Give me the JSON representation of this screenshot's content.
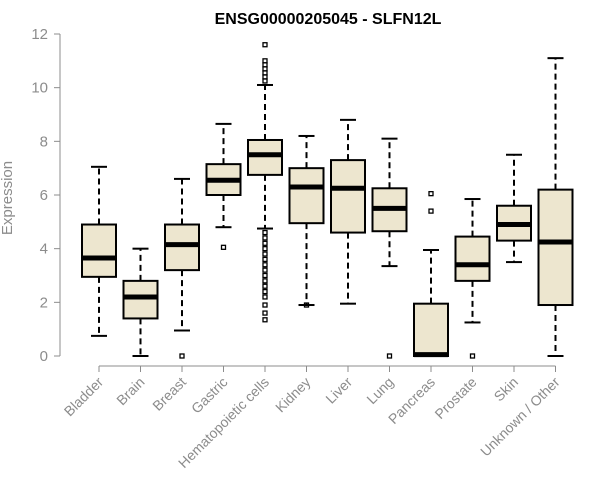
{
  "chart_data": {
    "type": "boxplot",
    "title": "ENSG00000205045 - SLFN12L",
    "xlabel": "",
    "ylabel": "Expression",
    "ylim": [
      0,
      12
    ],
    "yticks": [
      0,
      2,
      4,
      6,
      8,
      10,
      12
    ],
    "colors": {
      "box_fill": "#ede6cf",
      "stroke": "#000000",
      "axis": "#8c8c8c"
    },
    "categories": [
      "Bladder",
      "Brain",
      "Breast",
      "Gastric",
      "Hematopoietic cells",
      "Kidney",
      "Liver",
      "Lung",
      "Pancreas",
      "Prostate",
      "Skin",
      "Unknown / Other"
    ],
    "boxes": [
      {
        "name": "Bladder",
        "min": 0.75,
        "q1": 2.95,
        "median": 3.65,
        "q3": 4.9,
        "max": 7.05,
        "outliers": []
      },
      {
        "name": "Brain",
        "min": 0.0,
        "q1": 1.4,
        "median": 2.2,
        "q3": 2.8,
        "max": 4.0,
        "outliers": []
      },
      {
        "name": "Breast",
        "min": 0.95,
        "q1": 3.2,
        "median": 4.15,
        "q3": 4.9,
        "max": 6.6,
        "outliers": [
          0.0
        ]
      },
      {
        "name": "Gastric",
        "min": 4.8,
        "q1": 6.0,
        "median": 6.55,
        "q3": 7.15,
        "max": 8.65,
        "outliers": [
          4.05
        ]
      },
      {
        "name": "Hematopoietic cells",
        "min": 4.75,
        "q1": 6.75,
        "median": 7.5,
        "q3": 8.05,
        "max": 10.1,
        "outliers": [
          11.6,
          11.0,
          10.85,
          10.7,
          10.55,
          10.4,
          10.25,
          4.6,
          4.4,
          4.2,
          4.0,
          3.8,
          3.6,
          3.4,
          3.2,
          3.0,
          2.8,
          2.6,
          2.4,
          2.2,
          1.9,
          1.6,
          1.35
        ]
      },
      {
        "name": "Kidney",
        "min": 1.9,
        "q1": 4.95,
        "median": 6.3,
        "q3": 7.0,
        "max": 8.2,
        "outliers": [
          1.9
        ]
      },
      {
        "name": "Liver",
        "min": 1.95,
        "q1": 4.6,
        "median": 6.25,
        "q3": 7.3,
        "max": 8.8,
        "outliers": []
      },
      {
        "name": "Lung",
        "min": 3.35,
        "q1": 4.65,
        "median": 5.5,
        "q3": 6.25,
        "max": 8.1,
        "outliers": [
          0.0
        ]
      },
      {
        "name": "Pancreas",
        "min": 0.0,
        "q1": 0.0,
        "median": 0.05,
        "q3": 1.95,
        "max": 3.95,
        "outliers": [
          6.05,
          5.4
        ]
      },
      {
        "name": "Prostate",
        "min": 1.25,
        "q1": 2.8,
        "median": 3.4,
        "q3": 4.45,
        "max": 5.85,
        "outliers": [
          0.0
        ]
      },
      {
        "name": "Skin",
        "min": 3.5,
        "q1": 4.3,
        "median": 4.9,
        "q3": 5.6,
        "max": 7.5,
        "outliers": []
      },
      {
        "name": "Unknown / Other",
        "min": 0.0,
        "q1": 1.9,
        "median": 4.25,
        "q3": 6.2,
        "max": 11.1,
        "outliers": []
      }
    ]
  }
}
